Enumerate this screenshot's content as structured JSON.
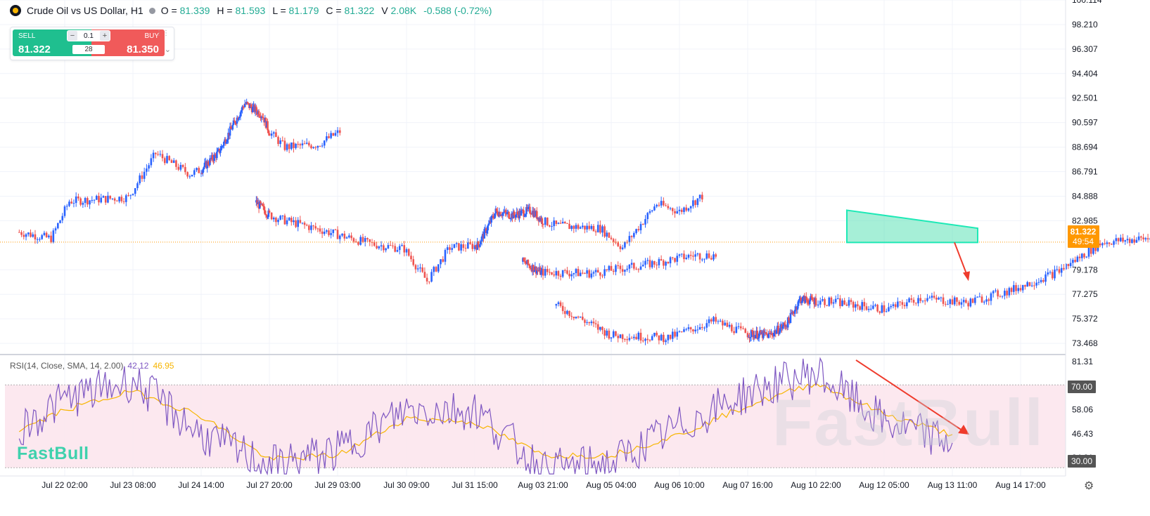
{
  "header": {
    "title": "Crude Oil vs US Dollar, H1",
    "ohlc": [
      {
        "label": "O =",
        "value": "81.339"
      },
      {
        "label": "H =",
        "value": "81.593"
      },
      {
        "label": "L =",
        "value": "81.179"
      },
      {
        "label": "C =",
        "value": "81.322"
      },
      {
        "label": "V",
        "value": "2.08K"
      }
    ],
    "change": "-0.588 (-0.72%)"
  },
  "trade_widget": {
    "sell_label": "SELL",
    "sell_price": "81.322",
    "buy_label": "BUY",
    "buy_price": "81.350",
    "quantity": "0.1",
    "spread": "28"
  },
  "price_axis": {
    "ticks": [
      "100.114",
      "98.210",
      "96.307",
      "94.404",
      "92.501",
      "90.597",
      "88.694",
      "86.791",
      "84.888",
      "82.985",
      "79.178",
      "77.275",
      "75.372",
      "73.468"
    ],
    "current_price": "81.322",
    "countdown": "49:54"
  },
  "rsi": {
    "label": "RSI(14, Close, SMA, 14, 2.00)",
    "value": "42.12",
    "sma_value": "46.95",
    "axis_ticks": [
      "81.31",
      "58.06",
      "46.43",
      "34.81"
    ],
    "upper_band": "70.00",
    "lower_band": "30.00"
  },
  "time_axis": [
    "Jul 22 02:00",
    "Jul 23 08:00",
    "Jul 24 14:00",
    "Jul 27 20:00",
    "Jul 29 03:00",
    "Jul 30 09:00",
    "Jul 31 15:00",
    "Aug 03 21:00",
    "Aug 05 04:00",
    "Aug 06 10:00",
    "Aug 07 16:00",
    "Aug 10 22:00",
    "Aug 12 05:00",
    "Aug 13 11:00",
    "Aug 14 17:00"
  ],
  "watermark": "FastBull",
  "colors": {
    "up": "#2962ff",
    "down": "#ef5350",
    "rsi": "#7e57c2",
    "rsi_sma": "#f7b500",
    "triangle": "#1de9b6",
    "arrow": "#ef3b2c"
  },
  "chart_data": [
    {
      "type": "candlestick",
      "title": "Crude Oil vs US Dollar, H1",
      "ylim": [
        72.6,
        100.114
      ],
      "current_price": 81.322,
      "x": [
        "Jul 22 02:00",
        "Jul 23 08:00",
        "Jul 24 14:00",
        "Jul 27 20:00",
        "Jul 29 03:00",
        "Jul 30 09:00",
        "Jul 31 15:00",
        "Aug 03 21:00",
        "Aug 05 04:00",
        "Aug 06 10:00",
        "Aug 07 16:00",
        "Aug 10 22:00",
        "Aug 12 05:00",
        "Aug 13 11:00"
      ],
      "close": [
        84.6,
        88.1,
        90.7,
        81.3,
        80.9,
        82.8,
        84.5,
        79.6,
        75.0,
        75.4,
        77.4,
        81.8,
        82.6,
        81.3
      ],
      "segments": [
        {
          "start": "Jul 21 06:00",
          "end": "Jul 24 23:00",
          "points": [
            [
              0,
              82.1
            ],
            [
              14,
              81.6
            ],
            [
              22,
              84.5
            ],
            [
              48,
              84.8
            ],
            [
              60,
              88.2
            ],
            [
              75,
              86.6
            ],
            [
              100,
              88.3
            ],
            [
              130,
              92.1
            ],
            [
              150,
              91.2
            ],
            [
              165,
              88.7
            ],
            [
              180,
              88.9
            ],
            [
              190,
              89.9
            ]
          ]
        },
        {
          "start": "Jul 27 05:00",
          "end": "Jul 31 19:00",
          "points": [
            [
              0,
              84.4
            ],
            [
              20,
              83.1
            ],
            [
              40,
              82.2
            ],
            [
              60,
              81.2
            ],
            [
              75,
              80.8
            ],
            [
              85,
              78.3
            ],
            [
              95,
              80.9
            ],
            [
              110,
              81.1
            ],
            [
              130,
              83.7
            ],
            [
              150,
              83.4
            ],
            [
              170,
              83.8
            ],
            [
              190,
              82.6
            ],
            [
              210,
              82.4
            ],
            [
              220,
              80.9
            ],
            [
              235,
              84.3
            ],
            [
              245,
              83.7
            ],
            [
              255,
              84.9
            ]
          ]
        },
        {
          "start": "Aug 02 22:00",
          "end": "Aug 04 02:00",
          "points": [
            [
              0,
              79.8
            ],
            [
              20,
              79.0
            ],
            [
              45,
              78.9
            ],
            [
              70,
              79.6
            ],
            [
              90,
              80.3
            ],
            [
              100,
              80.3
            ]
          ]
        },
        {
          "start": "Aug 04 03:00",
          "end": "Aug 12 14:00",
          "points": [
            [
              0,
              76.4
            ],
            [
              25,
              74.1
            ],
            [
              50,
              73.9
            ],
            [
              70,
              75.2
            ],
            [
              85,
              74.2
            ],
            [
              110,
              74.1
            ],
            [
              130,
              75.0
            ],
            [
              145,
              76.9
            ],
            [
              170,
              76.7
            ],
            [
              195,
              76.1
            ],
            [
              210,
              77.0
            ],
            [
              230,
              76.6
            ],
            [
              250,
              77.6
            ],
            [
              270,
              79.0
            ],
            [
              290,
              81.3
            ],
            [
              310,
              81.6
            ],
            [
              325,
              82.3
            ],
            [
              335,
              83.8
            ],
            [
              345,
              81.6
            ],
            [
              370,
              82.4
            ],
            [
              395,
              82.6
            ],
            [
              420,
              82.2
            ],
            [
              445,
              81.8
            ],
            [
              460,
              81.5
            ],
            [
              475,
              82.0
            ],
            [
              480,
              81.3
            ]
          ]
        }
      ]
    },
    {
      "type": "line",
      "title": "RSI(14, Close, SMA, 14, 2.00)",
      "ylim": [
        26,
        84
      ],
      "bands": [
        30,
        70
      ],
      "series": [
        {
          "name": "RSI",
          "last": 42.12,
          "x": [
            "Jul 21 06:00",
            "Jul 22 02:00",
            "Jul 23 08:00",
            "Jul 24 14:00",
            "Jul 27 20:00",
            "Jul 29 03:00",
            "Jul 30 09:00",
            "Jul 31 15:00",
            "Aug 03 21:00",
            "Aug 05 04:00",
            "Aug 06 10:00",
            "Aug 07 16:00",
            "Aug 10 22:00",
            "Aug 12 05:00",
            "Aug 13 11:00"
          ],
          "values": [
            49,
            63,
            72,
            46,
            31,
            38,
            58,
            58,
            29,
            32,
            50,
            66,
            76,
            52,
            42
          ]
        },
        {
          "name": "SMA",
          "last": 46.95,
          "x": [
            "Jul 21 06:00",
            "Jul 22 02:00",
            "Jul 23 08:00",
            "Jul 24 14:00",
            "Jul 27 20:00",
            "Jul 29 03:00",
            "Jul 30 09:00",
            "Jul 31 15:00",
            "Aug 03 21:00",
            "Aug 05 04:00",
            "Aug 06 10:00",
            "Aug 07 16:00",
            "Aug 10 22:00",
            "Aug 12 05:00",
            "Aug 13 11:00"
          ],
          "values": [
            48,
            58,
            67,
            55,
            34,
            36,
            54,
            52,
            36,
            36,
            46,
            60,
            71,
            56,
            46
          ]
        }
      ]
    }
  ]
}
